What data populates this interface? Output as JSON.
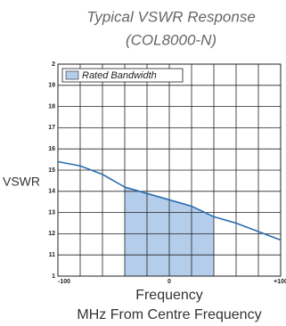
{
  "chart_data": {
    "type": "line",
    "title": [
      "Typical VSWR Response",
      "(COL8000-N)"
    ],
    "ylabel": "VSWR",
    "xlabel": [
      "Frequency",
      "MHz From Centre Frequency"
    ],
    "x": [
      -100,
      -80,
      -60,
      -40,
      -20,
      0,
      20,
      40,
      60,
      80,
      100
    ],
    "series": [
      {
        "name": "VSWR",
        "color": "#2a6db0",
        "values": [
          1.54,
          1.52,
          1.48,
          1.42,
          1.39,
          1.36,
          1.33,
          1.28,
          1.25,
          1.21,
          1.17
        ]
      }
    ],
    "shade": {
      "name": "Rated Bandwidth",
      "color": "#b4cdea",
      "range": [
        -40,
        40
      ]
    },
    "xlim": [
      -100,
      100
    ],
    "xticks": [
      -100,
      0,
      {
        "value": 100,
        "label": "+100"
      }
    ],
    "xgrid": [
      -100,
      -80,
      -60,
      -40,
      -20,
      0,
      20,
      40,
      60,
      80,
      100
    ],
    "ylim": [
      1,
      2
    ],
    "yticks": [
      1,
      {
        "value": 1.1,
        "label": "11"
      },
      {
        "value": 1.2,
        "label": "12"
      },
      {
        "value": 1.3,
        "label": "13"
      },
      {
        "value": 1.4,
        "label": "14"
      },
      {
        "value": 1.5,
        "label": "15"
      },
      {
        "value": 1.6,
        "label": "16"
      },
      {
        "value": 1.7,
        "label": "17"
      },
      {
        "value": 1.8,
        "label": "18"
      },
      {
        "value": 1.9,
        "label": "19"
      },
      2
    ],
    "grid": true,
    "legend": "upper left"
  }
}
